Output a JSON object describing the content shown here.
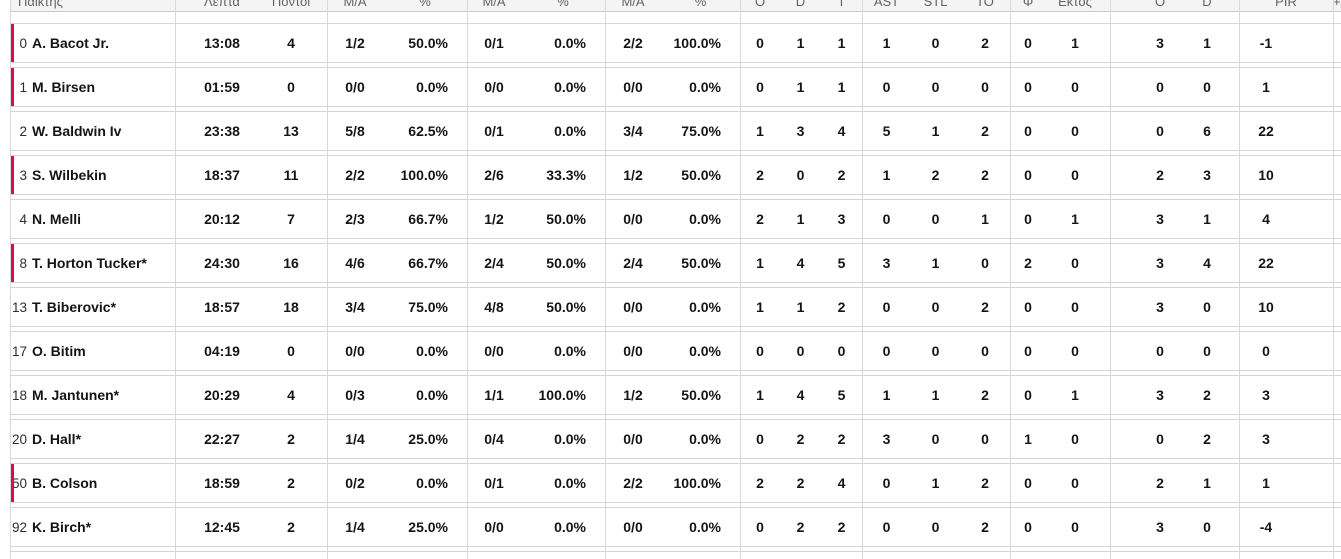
{
  "table": {
    "header": {
      "player": "Παίκτης",
      "minutes": "Λεπτά",
      "points": "Πόντοι",
      "ma": "M/A",
      "pct": "%",
      "reb_o": "O",
      "reb_d": "D",
      "reb_t": "T",
      "ast": "AST",
      "stl": "STL",
      "to": "TO",
      "blk_fv": "Φ",
      "blk_ag": "Εκτός",
      "foul_cm": "O",
      "foul_rv": "D",
      "pir": "PIR",
      "plus_minus": "+/-"
    },
    "rows": [
      {
        "num": "0",
        "name": "A. Bacot Jr.",
        "on_court": true,
        "min": "13:08",
        "pts": "4",
        "fg2_ma": "1/2",
        "fg2_pct": "50.0%",
        "fg3_ma": "0/1",
        "fg3_pct": "0.0%",
        "ft_ma": "2/2",
        "ft_pct": "100.0%",
        "reb_o": "0",
        "reb_d": "1",
        "reb_t": "1",
        "ast": "1",
        "stl": "0",
        "to": "2",
        "blk_fv": "0",
        "blk_ag": "1",
        "foul_cm": "3",
        "foul_rv": "1",
        "pir": "-1"
      },
      {
        "num": "1",
        "name": "M. Birsen",
        "on_court": true,
        "min": "01:59",
        "pts": "0",
        "fg2_ma": "0/0",
        "fg2_pct": "0.0%",
        "fg3_ma": "0/0",
        "fg3_pct": "0.0%",
        "ft_ma": "0/0",
        "ft_pct": "0.0%",
        "reb_o": "0",
        "reb_d": "1",
        "reb_t": "1",
        "ast": "0",
        "stl": "0",
        "to": "0",
        "blk_fv": "0",
        "blk_ag": "0",
        "foul_cm": "0",
        "foul_rv": "0",
        "pir": "1"
      },
      {
        "num": "2",
        "name": "W. Baldwin Iv",
        "on_court": false,
        "min": "23:38",
        "pts": "13",
        "fg2_ma": "5/8",
        "fg2_pct": "62.5%",
        "fg3_ma": "0/1",
        "fg3_pct": "0.0%",
        "ft_ma": "3/4",
        "ft_pct": "75.0%",
        "reb_o": "1",
        "reb_d": "3",
        "reb_t": "4",
        "ast": "5",
        "stl": "1",
        "to": "2",
        "blk_fv": "0",
        "blk_ag": "0",
        "foul_cm": "0",
        "foul_rv": "6",
        "pir": "22"
      },
      {
        "num": "3",
        "name": "S. Wilbekin",
        "on_court": true,
        "min": "18:37",
        "pts": "11",
        "fg2_ma": "2/2",
        "fg2_pct": "100.0%",
        "fg3_ma": "2/6",
        "fg3_pct": "33.3%",
        "ft_ma": "1/2",
        "ft_pct": "50.0%",
        "reb_o": "2",
        "reb_d": "0",
        "reb_t": "2",
        "ast": "1",
        "stl": "2",
        "to": "2",
        "blk_fv": "0",
        "blk_ag": "0",
        "foul_cm": "2",
        "foul_rv": "3",
        "pir": "10"
      },
      {
        "num": "4",
        "name": "N. Melli",
        "on_court": false,
        "min": "20:12",
        "pts": "7",
        "fg2_ma": "2/3",
        "fg2_pct": "66.7%",
        "fg3_ma": "1/2",
        "fg3_pct": "50.0%",
        "ft_ma": "0/0",
        "ft_pct": "0.0%",
        "reb_o": "2",
        "reb_d": "1",
        "reb_t": "3",
        "ast": "0",
        "stl": "0",
        "to": "1",
        "blk_fv": "0",
        "blk_ag": "1",
        "foul_cm": "3",
        "foul_rv": "1",
        "pir": "4"
      },
      {
        "num": "8",
        "name": "T. Horton Tucker*",
        "on_court": true,
        "min": "24:30",
        "pts": "16",
        "fg2_ma": "4/6",
        "fg2_pct": "66.7%",
        "fg3_ma": "2/4",
        "fg3_pct": "50.0%",
        "ft_ma": "2/4",
        "ft_pct": "50.0%",
        "reb_o": "1",
        "reb_d": "4",
        "reb_t": "5",
        "ast": "3",
        "stl": "1",
        "to": "0",
        "blk_fv": "2",
        "blk_ag": "0",
        "foul_cm": "3",
        "foul_rv": "4",
        "pir": "22"
      },
      {
        "num": "13",
        "name": "T. Biberovic*",
        "on_court": false,
        "min": "18:57",
        "pts": "18",
        "fg2_ma": "3/4",
        "fg2_pct": "75.0%",
        "fg3_ma": "4/8",
        "fg3_pct": "50.0%",
        "ft_ma": "0/0",
        "ft_pct": "0.0%",
        "reb_o": "1",
        "reb_d": "1",
        "reb_t": "2",
        "ast": "0",
        "stl": "0",
        "to": "2",
        "blk_fv": "0",
        "blk_ag": "0",
        "foul_cm": "3",
        "foul_rv": "0",
        "pir": "10"
      },
      {
        "num": "17",
        "name": "O. Bitim",
        "on_court": false,
        "min": "04:19",
        "pts": "0",
        "fg2_ma": "0/0",
        "fg2_pct": "0.0%",
        "fg3_ma": "0/0",
        "fg3_pct": "0.0%",
        "ft_ma": "0/0",
        "ft_pct": "0.0%",
        "reb_o": "0",
        "reb_d": "0",
        "reb_t": "0",
        "ast": "0",
        "stl": "0",
        "to": "0",
        "blk_fv": "0",
        "blk_ag": "0",
        "foul_cm": "0",
        "foul_rv": "0",
        "pir": "0"
      },
      {
        "num": "18",
        "name": "M. Jantunen*",
        "on_court": false,
        "min": "20:29",
        "pts": "4",
        "fg2_ma": "0/3",
        "fg2_pct": "0.0%",
        "fg3_ma": "1/1",
        "fg3_pct": "100.0%",
        "ft_ma": "1/2",
        "ft_pct": "50.0%",
        "reb_o": "1",
        "reb_d": "4",
        "reb_t": "5",
        "ast": "1",
        "stl": "1",
        "to": "2",
        "blk_fv": "0",
        "blk_ag": "1",
        "foul_cm": "3",
        "foul_rv": "2",
        "pir": "3"
      },
      {
        "num": "20",
        "name": "D. Hall*",
        "on_court": false,
        "min": "22:27",
        "pts": "2",
        "fg2_ma": "1/4",
        "fg2_pct": "25.0%",
        "fg3_ma": "0/4",
        "fg3_pct": "0.0%",
        "ft_ma": "0/0",
        "ft_pct": "0.0%",
        "reb_o": "0",
        "reb_d": "2",
        "reb_t": "2",
        "ast": "3",
        "stl": "0",
        "to": "0",
        "blk_fv": "1",
        "blk_ag": "0",
        "foul_cm": "0",
        "foul_rv": "2",
        "pir": "3"
      },
      {
        "num": "50",
        "name": "B. Colson",
        "on_court": true,
        "min": "18:59",
        "pts": "2",
        "fg2_ma": "0/2",
        "fg2_pct": "0.0%",
        "fg3_ma": "0/1",
        "fg3_pct": "0.0%",
        "ft_ma": "2/2",
        "ft_pct": "100.0%",
        "reb_o": "2",
        "reb_d": "2",
        "reb_t": "4",
        "ast": "0",
        "stl": "1",
        "to": "2",
        "blk_fv": "0",
        "blk_ag": "0",
        "foul_cm": "2",
        "foul_rv": "1",
        "pir": "1"
      },
      {
        "num": "92",
        "name": "K. Birch*",
        "on_court": false,
        "min": "12:45",
        "pts": "2",
        "fg2_ma": "1/4",
        "fg2_pct": "25.0%",
        "fg3_ma": "0/0",
        "fg3_pct": "0.0%",
        "ft_ma": "0/0",
        "ft_pct": "0.0%",
        "reb_o": "0",
        "reb_d": "2",
        "reb_t": "2",
        "ast": "0",
        "stl": "0",
        "to": "2",
        "blk_fv": "0",
        "blk_ag": "0",
        "foul_cm": "3",
        "foul_rv": "0",
        "pir": "-4"
      }
    ]
  },
  "colors": {
    "accent_on_court": "#dc0a4e",
    "grid_line": "#d9d9d9",
    "header_bg": "#f4f4f4",
    "header_text": "#5f6368",
    "stat_text": "#141414"
  }
}
